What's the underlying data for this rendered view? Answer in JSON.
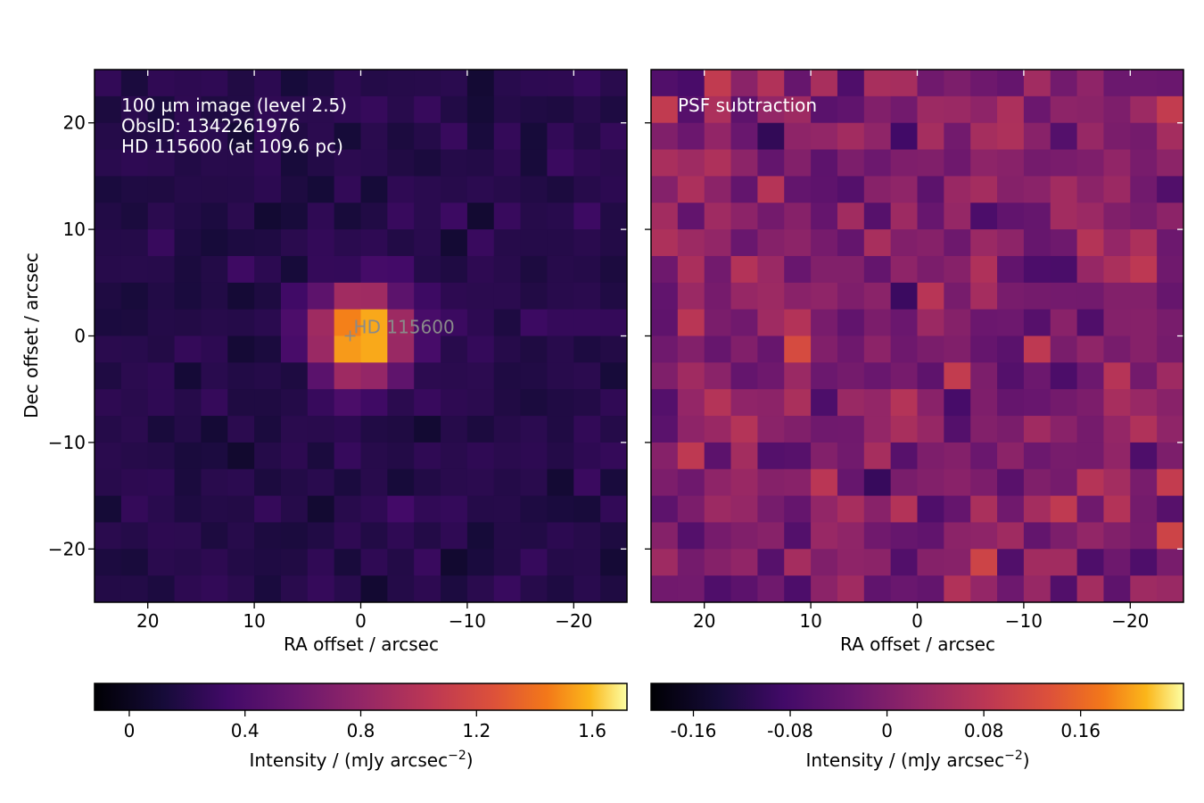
{
  "chart_data": [
    {
      "type": "heatmap",
      "panel": "left",
      "annotations": [
        "100 µm image (level 2.5)",
        "ObsID: 1342261976",
        "HD 115600 (at 109.6 pc)"
      ],
      "star": {
        "label": "HD 115600",
        "ra": 1.0,
        "dec": 0.0
      },
      "xlabel": "RA offset / arcsec",
      "ylabel": "Dec offset / arcsec",
      "xlim": [
        25,
        -25
      ],
      "ylim": [
        -25,
        25
      ],
      "xticks": [
        20,
        10,
        0,
        -10,
        -20
      ],
      "xtick_labels": [
        "20",
        "10",
        "0",
        "−10",
        "−20"
      ],
      "yticks": [
        20,
        10,
        0,
        -10,
        -20
      ],
      "ytick_labels": [
        "20",
        "10",
        "0",
        "−10",
        "−20"
      ],
      "grid": false,
      "pixel_size_arcsec": 2.5,
      "grid_shape": [
        20,
        20
      ],
      "source": {
        "peak": 1.62,
        "ra": 0.0,
        "dec": 0.0,
        "fwhm_arcsec": 7.0
      },
      "background": 0.2,
      "colormap": "inferno",
      "colorbar": {
        "label": "Intensity / (mJy arcsec",
        "label_exp": "−2",
        "label_close": ")",
        "vmin": -0.12,
        "vmax": 1.72,
        "ticks": [
          0,
          0.4,
          0.8,
          1.2,
          1.6
        ],
        "tick_labels": [
          "0",
          "0.4",
          "0.8",
          "1.2",
          "1.6"
        ]
      }
    },
    {
      "type": "heatmap",
      "panel": "right",
      "annotations": [
        "PSF subtraction"
      ],
      "xlabel": "RA offset / arcsec",
      "xlim": [
        25,
        -25
      ],
      "ylim": [
        -25,
        25
      ],
      "xticks": [
        20,
        10,
        0,
        -10,
        -20
      ],
      "xtick_labels": [
        "20",
        "10",
        "0",
        "−10",
        "−20"
      ],
      "grid": false,
      "pixel_size_arcsec": 2.5,
      "grid_shape": [
        20,
        20
      ],
      "noise_rms": 0.06,
      "colormap": "inferno",
      "contours": {
        "positive_color": "#000000",
        "negative_color": "#dddddd"
      },
      "colorbar": {
        "label": "Intensity / (mJy arcsec",
        "label_exp": "−2",
        "label_close": ")",
        "vmin": -0.195,
        "vmax": 0.245,
        "ticks": [
          -0.16,
          -0.08,
          0,
          0.08,
          0.16
        ],
        "tick_labels": [
          "-0.16",
          "-0.08",
          "0",
          "0.08",
          "0.16"
        ]
      }
    }
  ]
}
